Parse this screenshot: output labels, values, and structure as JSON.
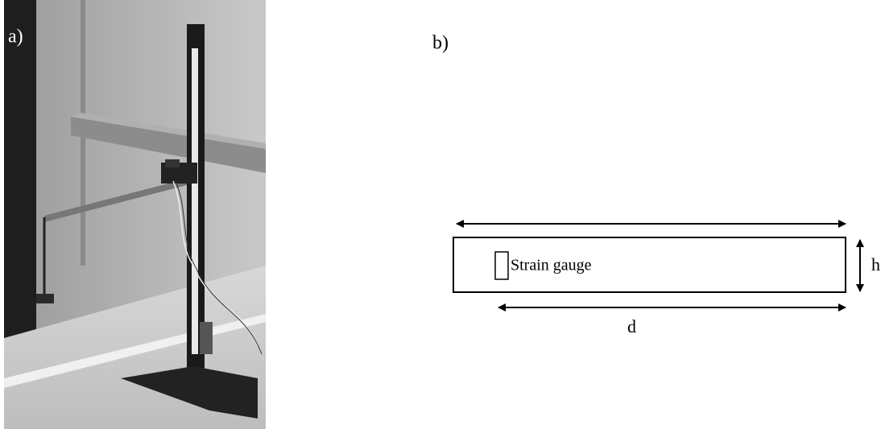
{
  "panel_a": {
    "label": "a)"
  },
  "panel_b": {
    "label": "b)",
    "gauge_label": "Strain gauge",
    "height_label": "h",
    "length_label": "d"
  }
}
